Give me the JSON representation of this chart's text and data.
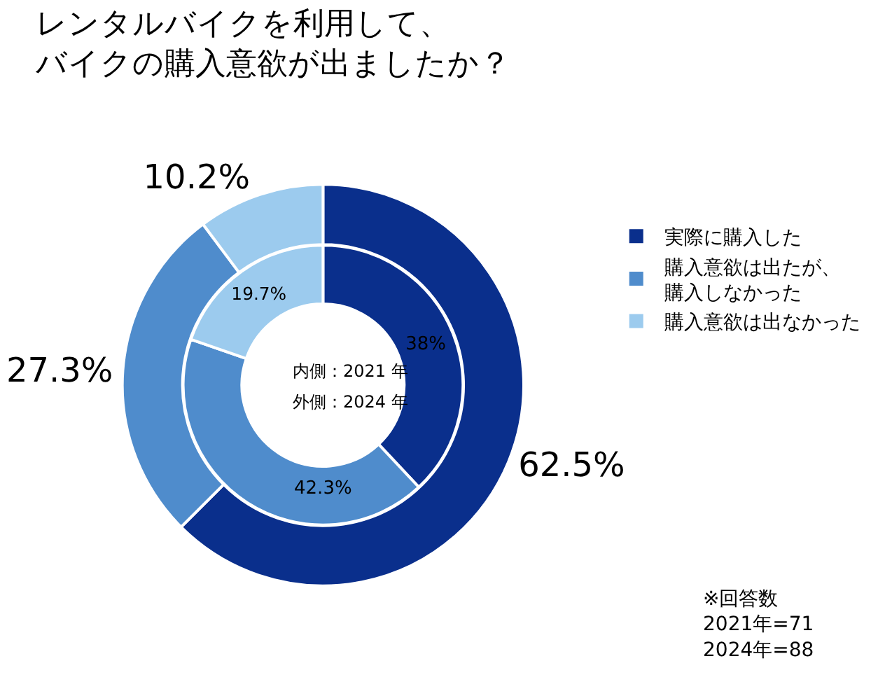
{
  "chart_data": {
    "type": "donut",
    "title": "レンタルバイクを利用して、バイクの購入意欲が出ましたか？",
    "categories": [
      "実際に購入した",
      "購入意欲は出たが、購入しなかった",
      "購入意欲は出なかった"
    ],
    "colors": [
      "#0a2f8c",
      "#4f8ccc",
      "#9ccbee"
    ],
    "series": [
      {
        "values": [
          38,
          42.3,
          19.7
        ],
        "value_labels": [
          "38%",
          "42.3%",
          "19.7%"
        ]
      },
      {
        "values": [
          62.5,
          27.3,
          10.2
        ],
        "value_labels": [
          "62.5%",
          "27.3%",
          "10.2%"
        ]
      }
    ],
    "legend": "right",
    "annotations": [
      "内側：2021 年",
      "外側：2024 年",
      "※回答数\n2021年=71\n2024年=88"
    ]
  }
}
